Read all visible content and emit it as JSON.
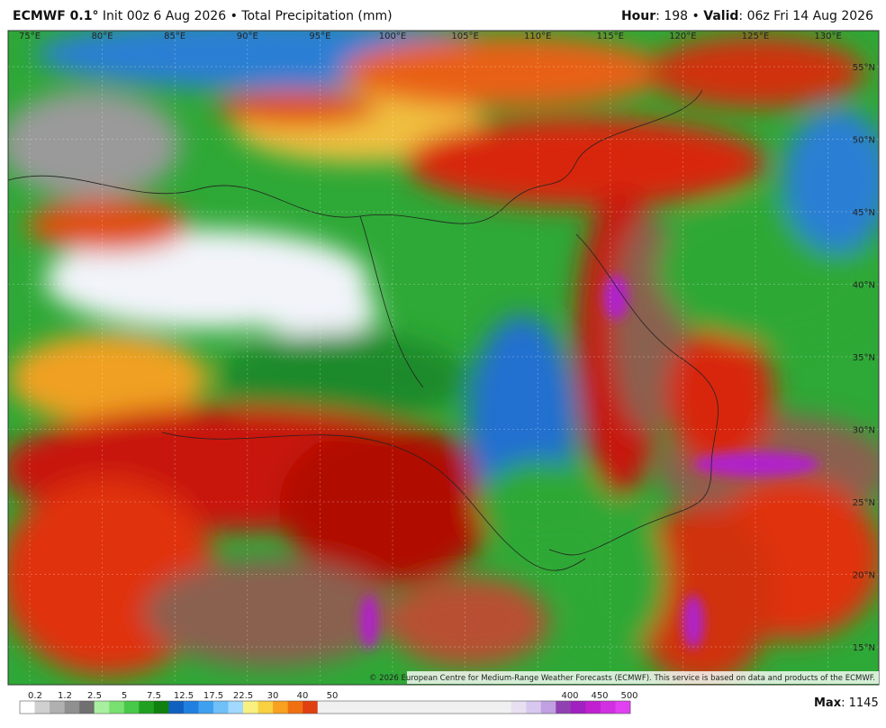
{
  "header": {
    "model": "ECMWF 0.1°",
    "init": "Init 00z 6 Aug 2026",
    "product": "Total Precipitation (mm)",
    "hour_label": "Hour",
    "hour": "198",
    "valid_label": "Valid",
    "valid": "06z Fri 14 Aug 2026"
  },
  "map": {
    "lon_labels": [
      "75°E",
      "80°E",
      "85°E",
      "90°E",
      "95°E",
      "100°E",
      "105°E",
      "110°E",
      "115°E",
      "120°E",
      "125°E",
      "130°E"
    ],
    "lat_labels": [
      "55°N",
      "50°N",
      "45°N",
      "40°N",
      "35°N",
      "30°N",
      "25°N",
      "20°N",
      "15°N"
    ],
    "credit": "© 2026 European Centre for Medium-Range Weather Forecasts (ECMWF). This service is based on data and products of the ECMWF."
  },
  "legend": {
    "low_labels": [
      "0.2",
      "1.2",
      "2.5",
      "5",
      "7.5",
      "12.5",
      "17.5",
      "22.5",
      "30",
      "40",
      "50"
    ],
    "high_labels": [
      "400",
      "450",
      "500"
    ],
    "max_label": "Max",
    "max": "1145"
  }
}
